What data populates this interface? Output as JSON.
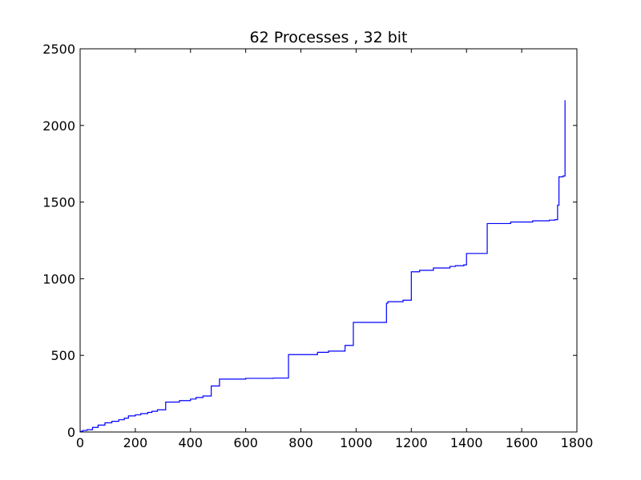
{
  "chart_data": {
    "type": "line",
    "title": "62 Processes , 32 bit",
    "xlabel": "",
    "ylabel": "",
    "xlim": [
      0,
      1800
    ],
    "ylim": [
      0,
      2500
    ],
    "xticks": [
      0,
      200,
      400,
      600,
      800,
      1000,
      1200,
      1400,
      1600,
      1800
    ],
    "yticks": [
      0,
      500,
      1000,
      1500,
      2000,
      2500
    ],
    "grid": false,
    "line_color": "#0000ff",
    "step": true,
    "series": [
      {
        "x": [
          0,
          10,
          25,
          45,
          65,
          90,
          115,
          140,
          160,
          175,
          200,
          220,
          245,
          260,
          280,
          310,
          360,
          400,
          420,
          445,
          475,
          505,
          600,
          700,
          755,
          860,
          900,
          960,
          990,
          1110,
          1115,
          1170,
          1200,
          1230,
          1280,
          1340,
          1360,
          1390,
          1400,
          1475,
          1560,
          1640,
          1700,
          1720,
          1730,
          1735,
          1750,
          1757
        ],
        "y": [
          5,
          10,
          15,
          30,
          45,
          60,
          70,
          80,
          90,
          105,
          112,
          120,
          128,
          135,
          145,
          195,
          205,
          215,
          225,
          235,
          300,
          345,
          350,
          352,
          505,
          520,
          528,
          565,
          715,
          840,
          850,
          860,
          1045,
          1055,
          1070,
          1080,
          1085,
          1090,
          1165,
          1360,
          1370,
          1378,
          1382,
          1385,
          1480,
          1665,
          1670,
          2165
        ]
      }
    ]
  }
}
